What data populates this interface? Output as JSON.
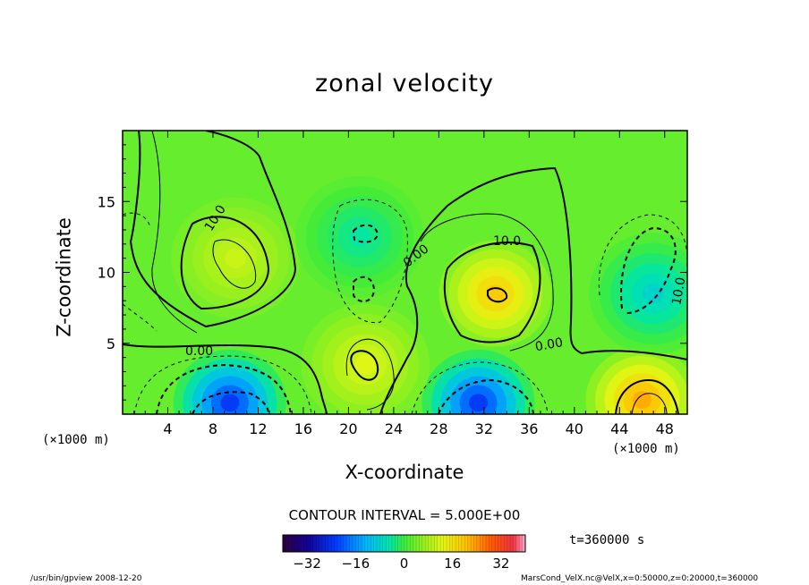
{
  "chart_data": {
    "type": "heatmap",
    "title": "zonal velocity",
    "xlabel": "X-coordinate",
    "ylabel": "Z-coordinate",
    "x_unit_label": "(×1000 m)",
    "x_ticks": [
      4,
      8,
      12,
      16,
      20,
      24,
      28,
      32,
      36,
      40,
      44,
      48
    ],
    "y_ticks": [
      5,
      10,
      15
    ],
    "xlim": [
      0,
      50
    ],
    "ylim": [
      0,
      20
    ],
    "contour_interval_text": "CONTOUR INTERVAL = 5.000E+00",
    "contour_labels": [
      "10.0",
      "10.0",
      "10.0",
      "0.00",
      "0.00",
      "0.00"
    ],
    "colorbar": {
      "ticks": [
        -32,
        -16,
        0,
        16,
        32
      ],
      "range": [
        -40,
        40
      ]
    },
    "features": [
      {
        "x": 10,
        "z": 11,
        "value": 12
      },
      {
        "x": 33,
        "z": 8.5,
        "value": 22
      },
      {
        "x": 46,
        "z": 1,
        "value": 26
      },
      {
        "x": 9.5,
        "z": 0.8,
        "value": -28
      },
      {
        "x": 31.5,
        "z": 0.8,
        "value": -28
      },
      {
        "x": 47,
        "z": 8.5,
        "value": -10
      },
      {
        "x": 21,
        "z": 12.5,
        "value": -6
      },
      {
        "x": 21.5,
        "z": 3.5,
        "value": 14
      }
    ],
    "time_label": "t=360000 s"
  },
  "footer": {
    "left": "/usr/bin/gpview  2008-12-20",
    "right": "MarsCond_VelX.nc@VelX,x=0:50000,z=0:20000,t=360000"
  }
}
